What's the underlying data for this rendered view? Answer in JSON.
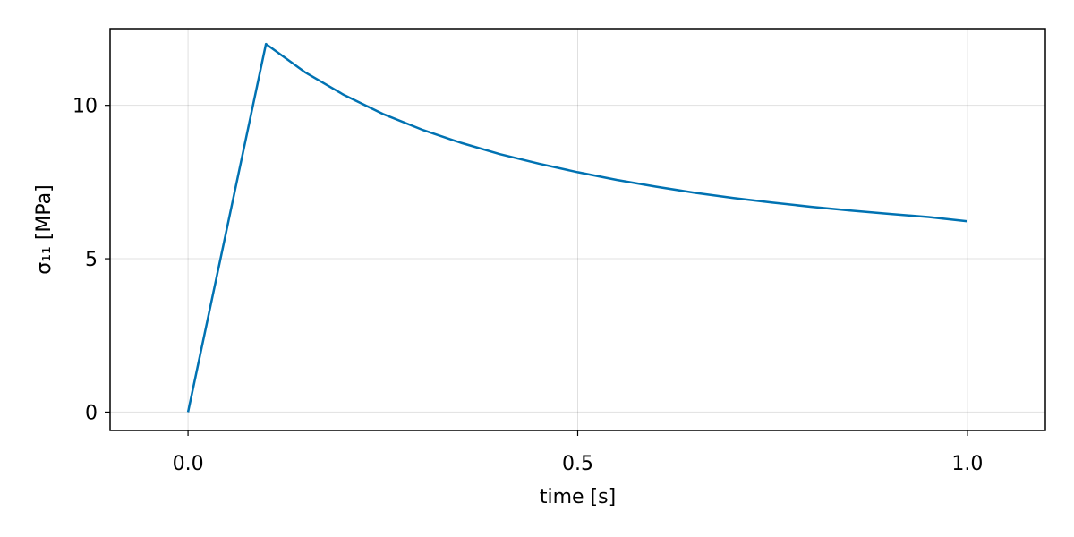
{
  "chart_data": {
    "type": "line",
    "title": "",
    "xlabel": "time [s]",
    "ylabel": "σ₁₁ [MPa]",
    "xlim": [
      -0.1,
      1.1
    ],
    "ylim": [
      -0.6,
      12.5
    ],
    "xticks": [
      0.0,
      0.5,
      1.0
    ],
    "xtick_labels": [
      "0.0",
      "0.5",
      "1.0"
    ],
    "yticks": [
      0,
      5,
      10
    ],
    "ytick_labels": [
      "0",
      "5",
      "10"
    ],
    "grid": true,
    "series": [
      {
        "color": "#0072b2",
        "x": [
          0.0,
          0.1,
          0.15,
          0.2,
          0.25,
          0.3,
          0.35,
          0.4,
          0.45,
          0.5,
          0.55,
          0.6,
          0.65,
          0.7,
          0.75,
          0.8,
          0.85,
          0.9,
          0.95,
          1.0
        ],
        "y": [
          0.0,
          12.0,
          11.08,
          10.34,
          9.72,
          9.21,
          8.78,
          8.41,
          8.1,
          7.82,
          7.57,
          7.35,
          7.15,
          6.98,
          6.83,
          6.69,
          6.57,
          6.46,
          6.36,
          6.22
        ]
      }
    ]
  }
}
